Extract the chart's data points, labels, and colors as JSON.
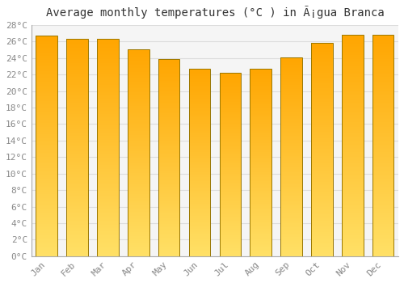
{
  "title": "Average monthly temperatures (°C ) in Ã¡gua Branca",
  "months": [
    "Jan",
    "Feb",
    "Mar",
    "Apr",
    "May",
    "Jun",
    "Jul",
    "Aug",
    "Sep",
    "Oct",
    "Nov",
    "Dec"
  ],
  "values": [
    26.7,
    26.3,
    26.3,
    25.1,
    23.9,
    22.7,
    22.2,
    22.7,
    24.1,
    25.8,
    26.8,
    26.8
  ],
  "ylim": [
    0,
    28
  ],
  "yticks": [
    0,
    2,
    4,
    6,
    8,
    10,
    12,
    14,
    16,
    18,
    20,
    22,
    24,
    26,
    28
  ],
  "background_color": "#ffffff",
  "plot_bg_color": "#f5f5f5",
  "grid_color": "#dddddd",
  "title_fontsize": 10,
  "tick_fontsize": 8,
  "bar_color_top": "#FFA500",
  "bar_color_bottom": "#FFE066",
  "bar_border_color": "#888844",
  "bar_width": 0.7
}
